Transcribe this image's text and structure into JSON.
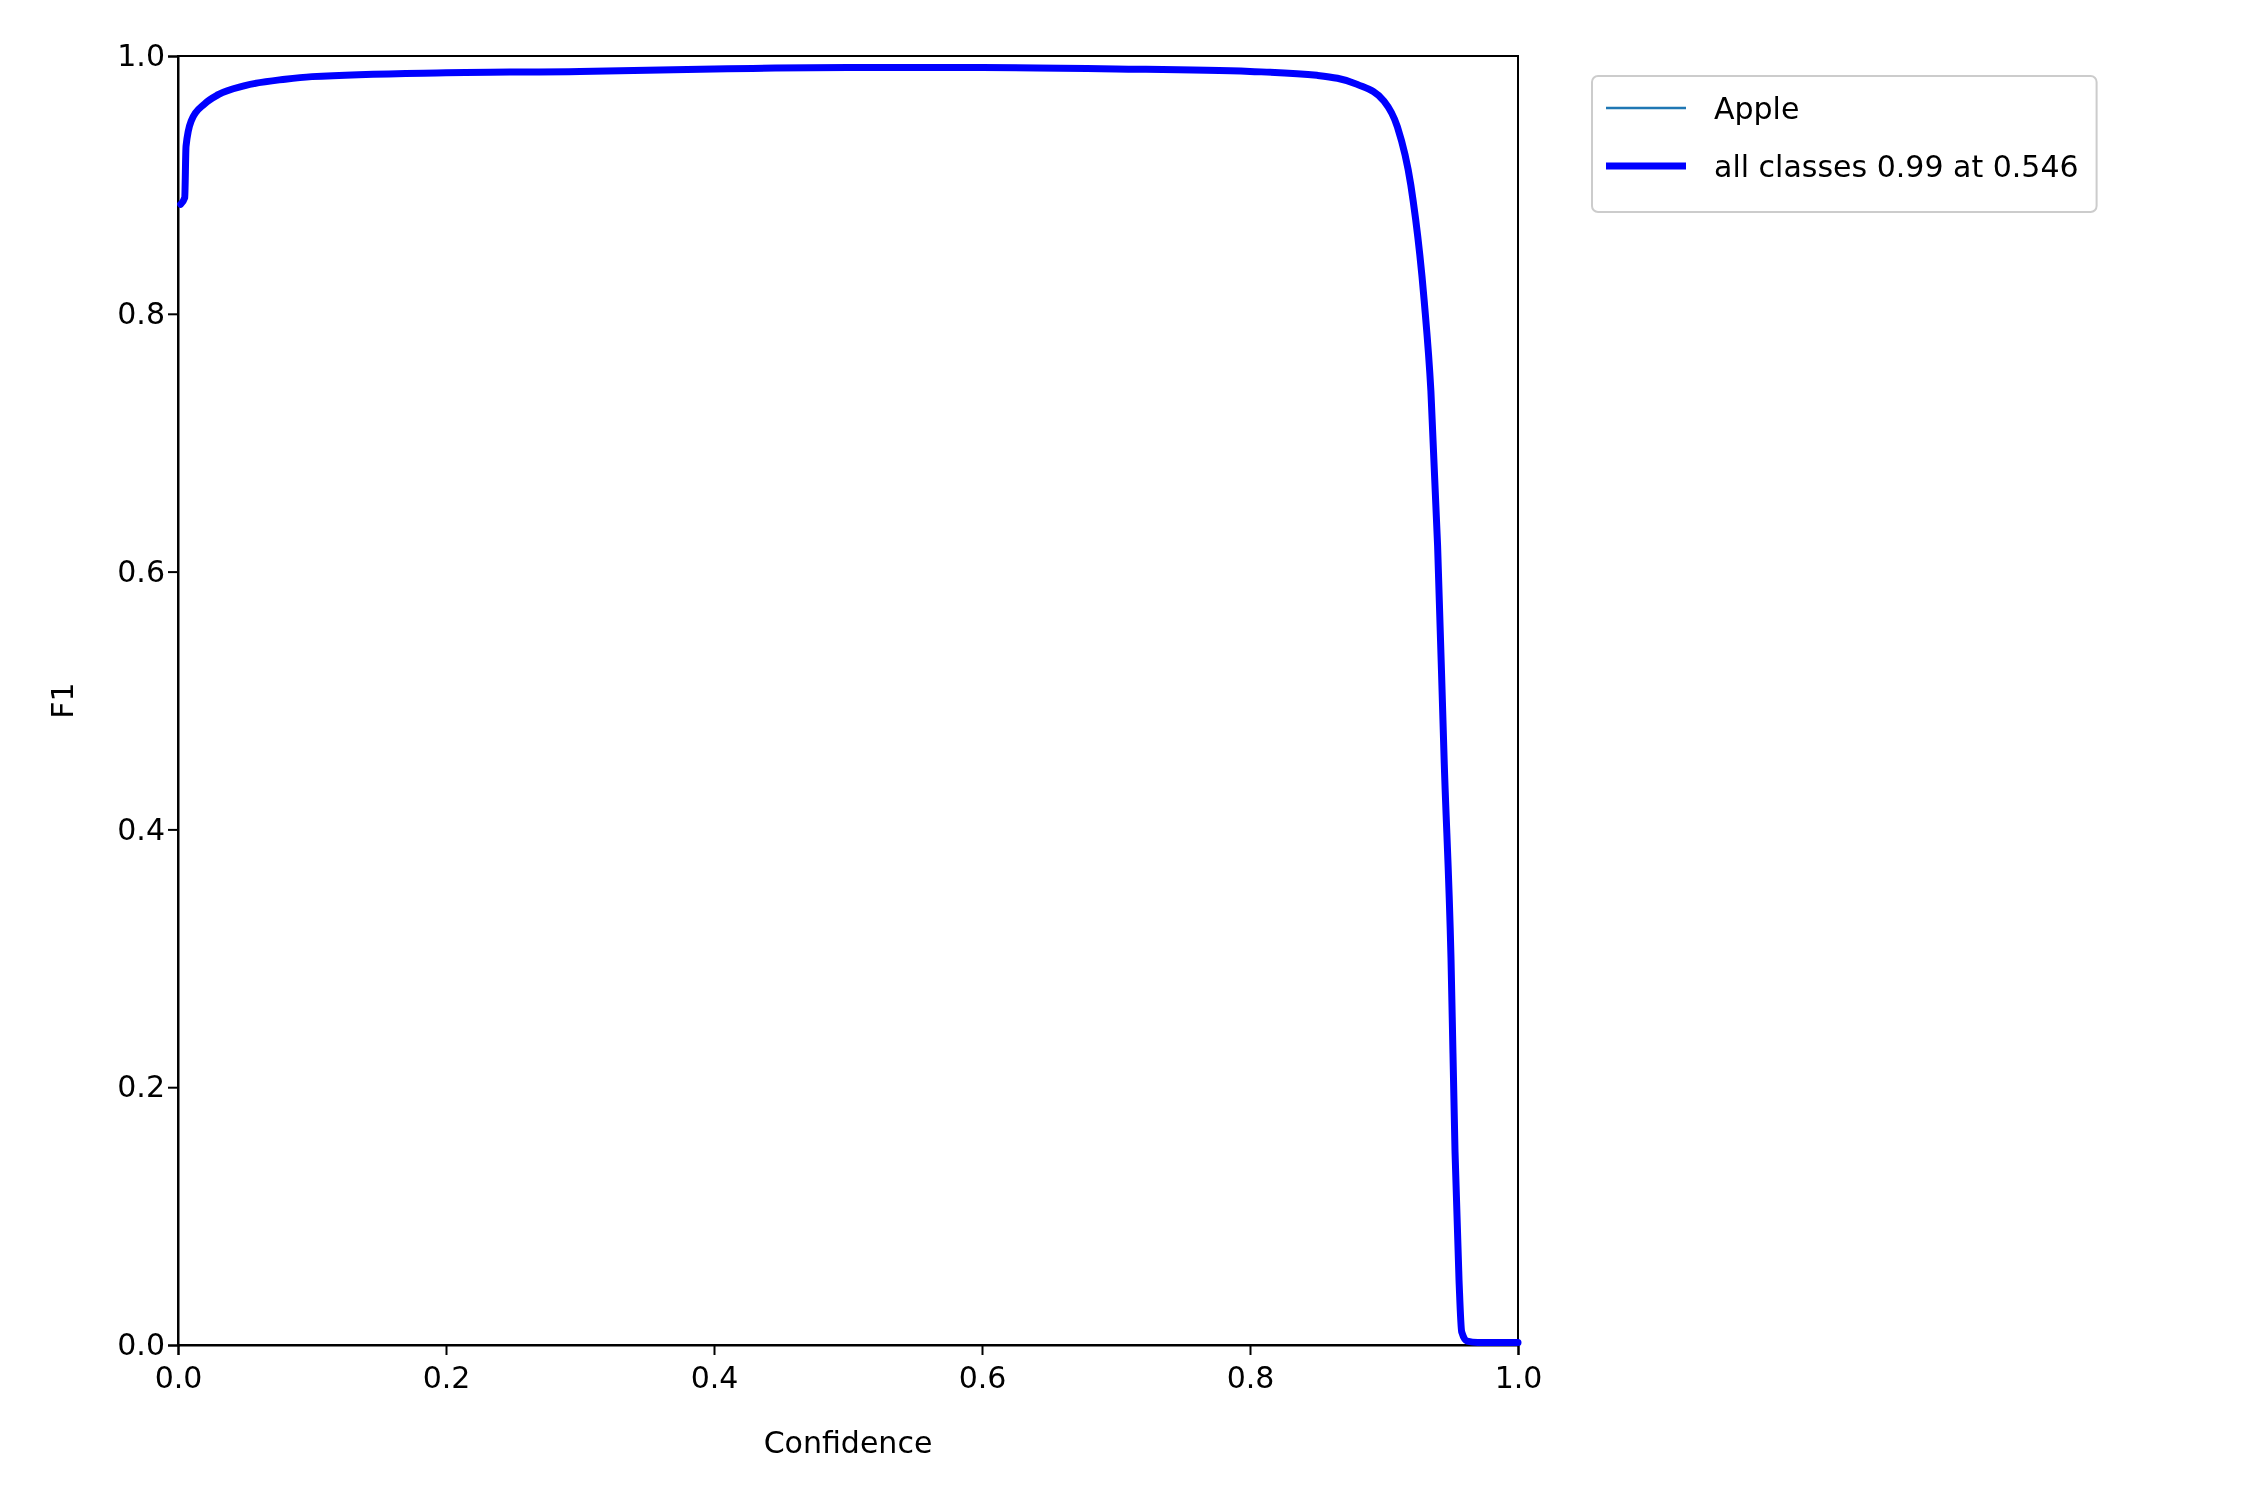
{
  "chart_data": {
    "type": "line",
    "xlabel": "Confidence",
    "ylabel": "F1",
    "xlim": [
      0,
      1
    ],
    "ylim": [
      0,
      1
    ],
    "xticks": [
      {
        "value": 0,
        "label": "0.0"
      },
      0.2,
      0.4,
      0.6,
      0.8,
      {
        "value": 1,
        "label": "1.0"
      }
    ],
    "yticks": [
      {
        "value": 0,
        "label": "0.0"
      },
      0.2,
      0.4,
      0.6,
      0.8,
      {
        "value": 1,
        "label": "1.0"
      }
    ],
    "grid": false,
    "legend": "top right",
    "x": [
      0.002,
      0.005,
      0.006,
      0.01,
      0.02,
      0.03,
      0.05,
      0.08,
      0.1,
      0.2,
      0.3,
      0.4,
      0.5,
      0.6,
      0.7,
      0.8,
      0.85,
      0.88,
      0.9,
      0.91,
      0.92,
      0.93,
      0.935,
      0.94,
      0.945,
      0.95,
      0.953,
      0.956,
      0.958,
      0.962,
      0.97,
      1.0
    ],
    "series": [
      {
        "name": "Apple",
        "color": "#1f77b4",
        "values": [
          null,
          null,
          null,
          null,
          null,
          null,
          null,
          null,
          null,
          null,
          null,
          null,
          null,
          null,
          null,
          null,
          null,
          null,
          null,
          null,
          null,
          null,
          null,
          null,
          null,
          null,
          null,
          null,
          null,
          null,
          null,
          null
        ]
      },
      {
        "name": "all classes 0.99 at 0.546",
        "color": "#0000ff",
        "values": [
          0.885,
          0.89,
          0.93,
          0.95,
          0.963,
          0.97,
          0.977,
          0.982,
          0.984,
          0.987,
          0.988,
          0.99,
          0.991,
          0.991,
          0.99,
          0.988,
          0.985,
          0.978,
          0.965,
          0.945,
          0.9,
          0.81,
          0.74,
          0.62,
          0.45,
          0.3,
          0.15,
          0.05,
          0.01,
          0.003,
          0.002,
          0.002
        ]
      }
    ]
  }
}
